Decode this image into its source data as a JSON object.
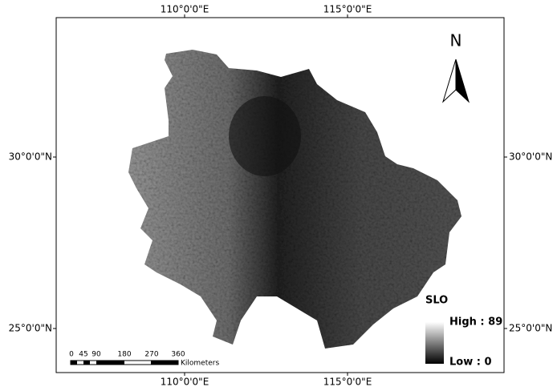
{
  "graticule": {
    "top": [
      "110°0'0\"E",
      "115°0'0\"E"
    ],
    "bottom": [
      "110°0'0\"E",
      "115°0'0\"E"
    ],
    "left": [
      "30°0'0\"N",
      "25°0'0\"N"
    ],
    "right": [
      "30°0'0\"N",
      "25°0'0\"N"
    ]
  },
  "north_arrow": "N",
  "legend": {
    "title": "SLO",
    "high": "High : 89",
    "low": "Low : 0"
  },
  "scale_bar": {
    "labels": [
      "0",
      "45",
      "90",
      "180",
      "270",
      "360"
    ],
    "unit": "Kilometers"
  }
}
